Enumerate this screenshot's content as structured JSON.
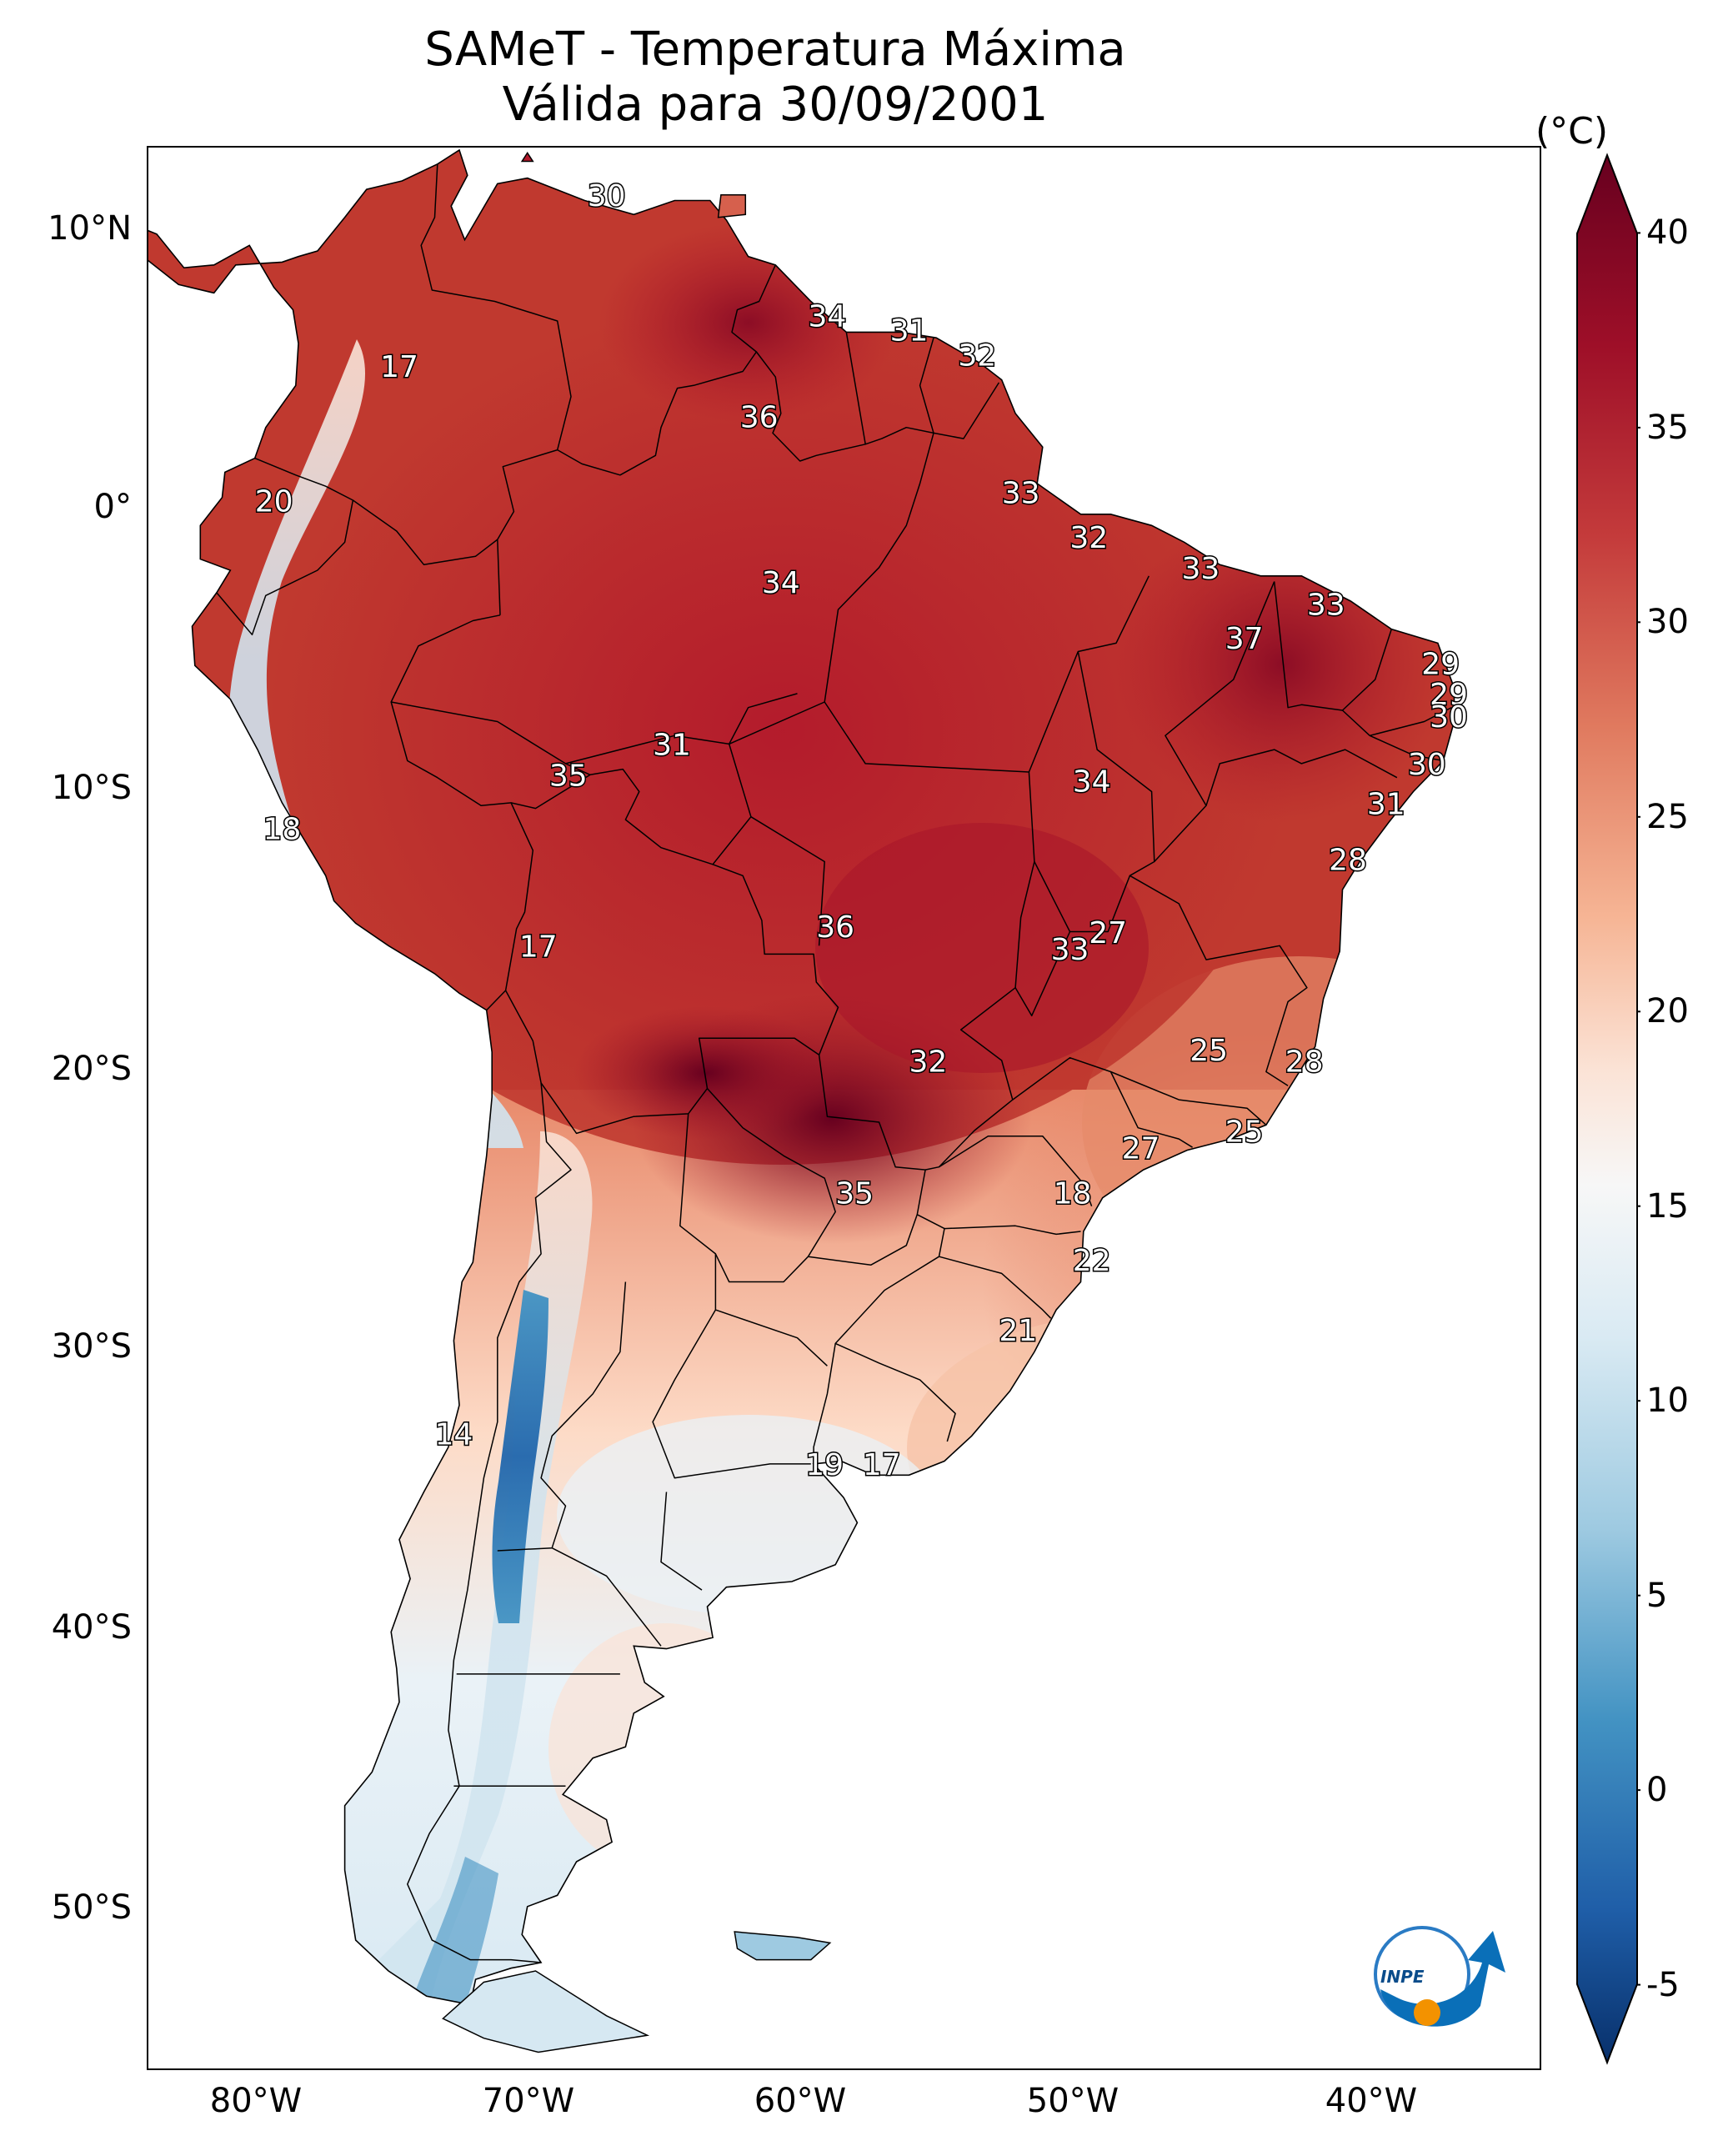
{
  "title": {
    "line1": "SAMeT - Temperatura Máxima",
    "line2": "Válida para 30/09/2001"
  },
  "axes": {
    "lat_labels": [
      "10°N",
      "0°",
      "10°S",
      "20°S",
      "30°S",
      "40°S",
      "50°S"
    ],
    "lon_labels": [
      "80°W",
      "70°W",
      "60°W",
      "50°W",
      "40°W"
    ]
  },
  "colorbar": {
    "unit": "(°C)",
    "ticks": [
      "40",
      "35",
      "30",
      "25",
      "20",
      "15",
      "10",
      "5",
      "0",
      "-5"
    ],
    "range": [
      -7,
      42
    ],
    "colors": [
      "#08306b",
      "#2166ac",
      "#4393c3",
      "#92c5de",
      "#d1e5f0",
      "#f7f7f7",
      "#fddbc7",
      "#f4a582",
      "#d6604d",
      "#b2182b",
      "#67001f"
    ]
  },
  "contour_labels": [
    {
      "text": "30",
      "lon": -66.0,
      "lat": 10.7
    },
    {
      "text": "34",
      "lon": -57.9,
      "lat": 6.4
    },
    {
      "text": "31",
      "lon": -54.9,
      "lat": 5.9
    },
    {
      "text": "32",
      "lon": -52.4,
      "lat": 5.0
    },
    {
      "text": "17",
      "lon": -73.6,
      "lat": 4.6
    },
    {
      "text": "36",
      "lon": -60.4,
      "lat": 2.8
    },
    {
      "text": "20",
      "lon": -78.2,
      "lat": -0.2
    },
    {
      "text": "33",
      "lon": -50.8,
      "lat": 0.1
    },
    {
      "text": "32",
      "lon": -48.3,
      "lat": -1.5
    },
    {
      "text": "33",
      "lon": -44.2,
      "lat": -2.6
    },
    {
      "text": "34",
      "lon": -59.6,
      "lat": -3.1
    },
    {
      "text": "33",
      "lon": -39.6,
      "lat": -3.9
    },
    {
      "text": "37",
      "lon": -42.6,
      "lat": -5.1
    },
    {
      "text": "29",
      "lon": -35.4,
      "lat": -6.0
    },
    {
      "text": "29",
      "lon": -35.1,
      "lat": -7.1
    },
    {
      "text": "30",
      "lon": -35.1,
      "lat": -7.9
    },
    {
      "text": "31",
      "lon": -63.6,
      "lat": -8.9
    },
    {
      "text": "35",
      "lon": -67.4,
      "lat": -10.0
    },
    {
      "text": "30",
      "lon": -35.9,
      "lat": -9.6
    },
    {
      "text": "34",
      "lon": -48.2,
      "lat": -10.2
    },
    {
      "text": "31",
      "lon": -37.4,
      "lat": -11.0
    },
    {
      "text": "18",
      "lon": -77.9,
      "lat": -11.9
    },
    {
      "text": "28",
      "lon": -38.8,
      "lat": -13.0
    },
    {
      "text": "36",
      "lon": -57.6,
      "lat": -15.4
    },
    {
      "text": "27",
      "lon": -47.6,
      "lat": -15.6
    },
    {
      "text": "17",
      "lon": -68.5,
      "lat": -16.1
    },
    {
      "text": "33",
      "lon": -49.0,
      "lat": -16.2
    },
    {
      "text": "25",
      "lon": -43.9,
      "lat": -19.8
    },
    {
      "text": "32",
      "lon": -54.2,
      "lat": -20.2
    },
    {
      "text": "28",
      "lon": -40.4,
      "lat": -20.2
    },
    {
      "text": "25",
      "lon": -42.6,
      "lat": -22.7
    },
    {
      "text": "27",
      "lon": -46.4,
      "lat": -23.3
    },
    {
      "text": "35",
      "lon": -56.9,
      "lat": -24.9
    },
    {
      "text": "18",
      "lon": -48.9,
      "lat": -24.9
    },
    {
      "text": "22",
      "lon": -48.2,
      "lat": -27.3
    },
    {
      "text": "21",
      "lon": -50.9,
      "lat": -29.8
    },
    {
      "text": "14",
      "lon": -71.6,
      "lat": -33.5
    },
    {
      "text": "19",
      "lon": -58.0,
      "lat": -34.6
    },
    {
      "text": "17",
      "lon": -55.9,
      "lat": -34.6
    }
  ],
  "logo": {
    "text": "INPE"
  }
}
